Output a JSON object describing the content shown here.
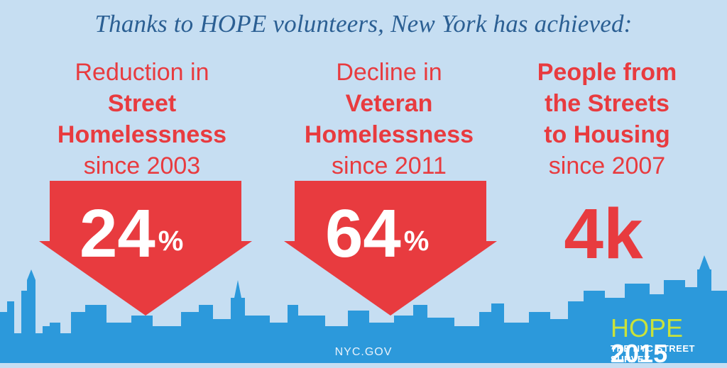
{
  "headline": "Thanks to HOPE volunteers, New York has achieved:",
  "stats": [
    {
      "line1": "Reduction in",
      "line2": "Street",
      "line3": "Homelessness",
      "line4": "since 2003",
      "value": "24",
      "suffix": "%"
    },
    {
      "line1": "Decline in",
      "line2": "Veteran",
      "line3": "Homelessness",
      "line4": "since 2011",
      "value": "64",
      "suffix": "%"
    },
    {
      "line1": "People from",
      "line2": "the Streets",
      "line3": "to Housing",
      "line4": "since 2007",
      "value": "4k"
    }
  ],
  "footer": {
    "site": "NYC.GOV",
    "brand_word": "HOPE",
    "brand_year": "2015",
    "subtitle": "THE NYC STREET SURVEY"
  },
  "colors": {
    "background": "#c6def2",
    "accent_red": "#e83b3f",
    "headline_blue": "#2b5f93",
    "skyline_blue": "#2c99db",
    "hope_green": "#c9e23a"
  }
}
